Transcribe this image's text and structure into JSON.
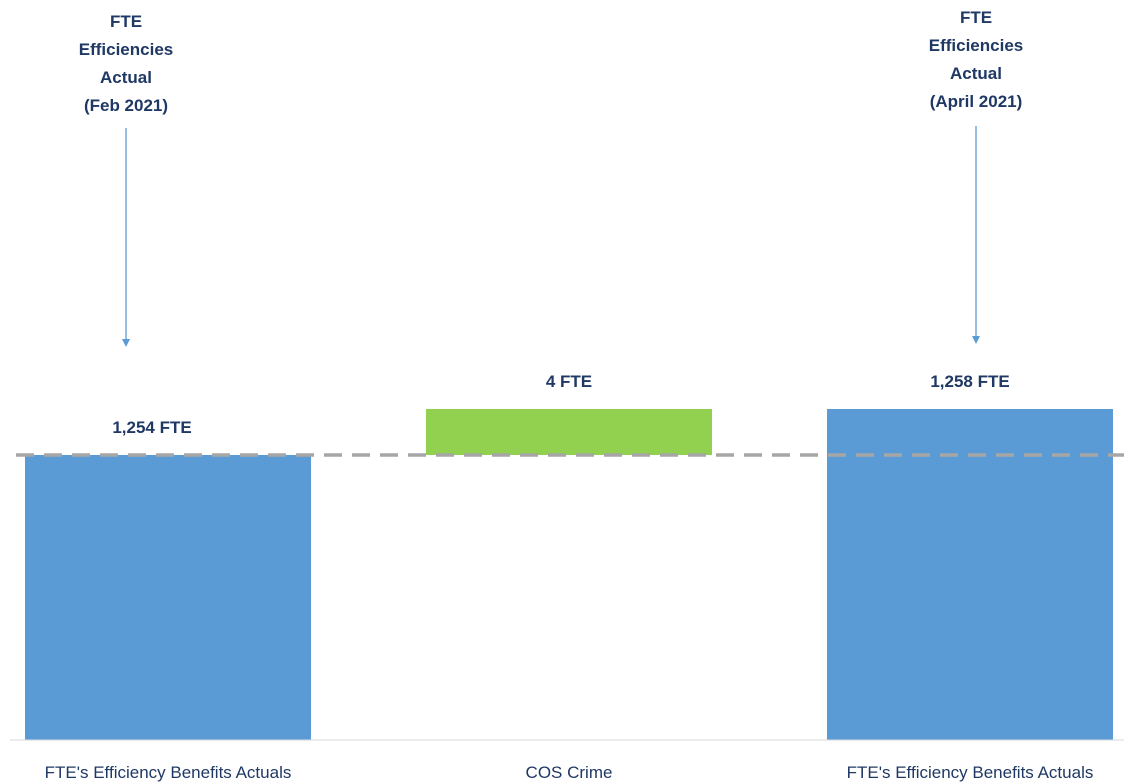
{
  "chart_data": {
    "type": "bar",
    "subtype": "waterfall",
    "categories": [
      "FTE's Efficiency Benefits Actuals",
      "COS Crime",
      "FTE's Efficiency Benefits Actuals"
    ],
    "bars": [
      {
        "kind": "total",
        "value": 1254,
        "label": "1,254 FTE",
        "color": "#5b9bd5"
      },
      {
        "kind": "increase",
        "value": 4,
        "label": "4 FTE",
        "color": "#92d050"
      },
      {
        "kind": "total",
        "value": 1258,
        "label": "1,258 FTE",
        "color": "#5b9bd5"
      }
    ],
    "reference_line": {
      "value": 1254,
      "style": "dashed",
      "color": "#a6a6a6"
    },
    "title": "",
    "xlabel": "",
    "ylabel": "",
    "grid": false,
    "legend": "none",
    "annotations": [
      {
        "lines": [
          "FTE",
          "Efficiencies",
          "Actual",
          "(Feb 2021)"
        ],
        "target_category": 0
      },
      {
        "lines": [
          "FTE",
          "Efficiencies",
          "Actual",
          "(April 2021)"
        ],
        "target_category": 2
      }
    ],
    "label_color": "#1f3864",
    "axis_label_color": "#1f3864",
    "arrow_color": "#5b9bd5"
  }
}
